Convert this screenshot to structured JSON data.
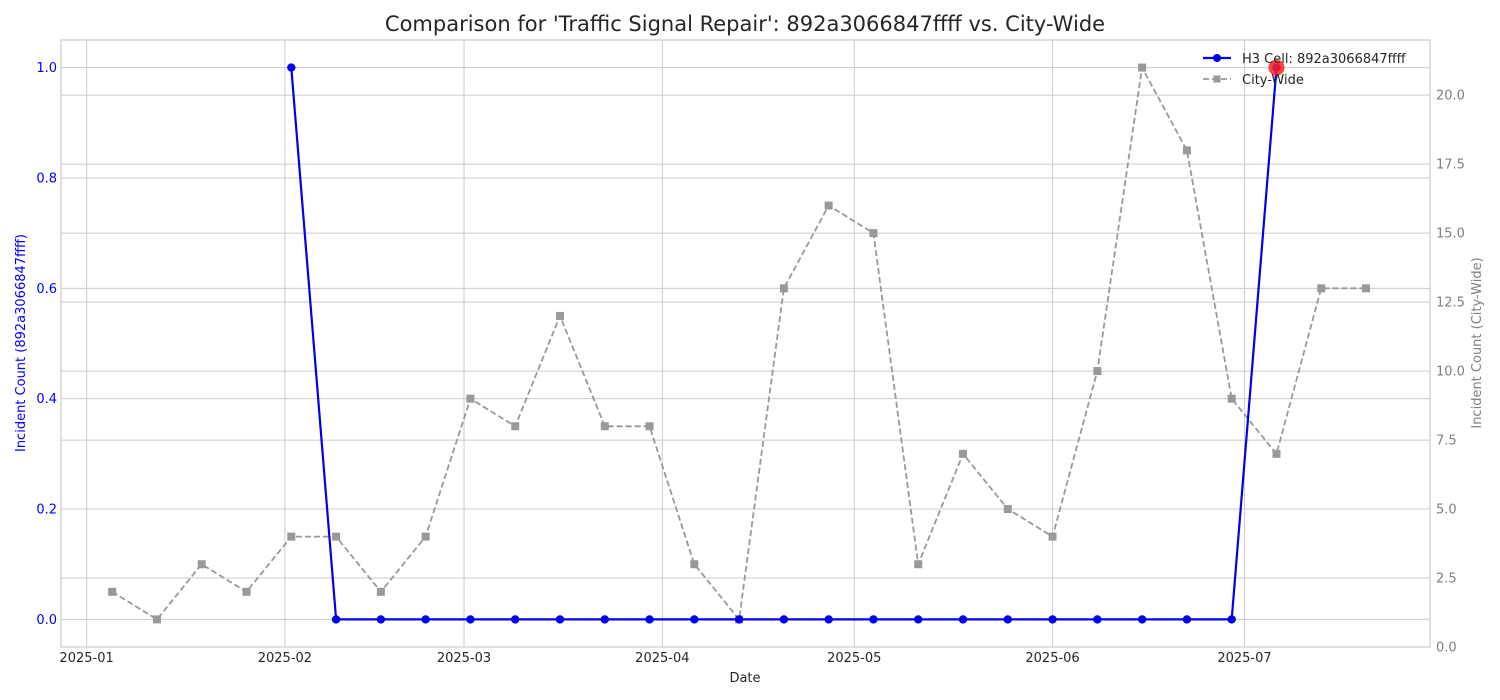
{
  "chart_data": {
    "type": "line",
    "title": "Comparison for 'Traffic Signal Repair': 892a3066847ffff vs. City-Wide",
    "xlabel": "Date",
    "ylabel_left": "Incident Count (892a3066847ffff)",
    "ylabel_right": "Incident Count (City-Wide)",
    "x_range": [
      "2024-12-28",
      "2025-07-30"
    ],
    "x_ticks": [
      {
        "date": "2025-01-01",
        "label": "2025-01"
      },
      {
        "date": "2025-02-01",
        "label": "2025-02"
      },
      {
        "date": "2025-03-01",
        "label": "2025-03"
      },
      {
        "date": "2025-04-01",
        "label": "2025-04"
      },
      {
        "date": "2025-05-01",
        "label": "2025-05"
      },
      {
        "date": "2025-06-01",
        "label": "2025-06"
      },
      {
        "date": "2025-07-01",
        "label": "2025-07"
      }
    ],
    "y_left": {
      "range": [
        -0.05,
        1.05
      ],
      "ticks": [
        0.0,
        0.2,
        0.4,
        0.6,
        0.8,
        1.0
      ],
      "tick_labels": [
        "0.0",
        "0.2",
        "0.4",
        "0.6",
        "0.8",
        "1.0"
      ],
      "color": "#0000ff"
    },
    "y_right": {
      "range": [
        0,
        22
      ],
      "ticks": [
        0,
        2.5,
        5,
        7.5,
        10,
        12.5,
        15,
        17.5,
        20
      ],
      "tick_labels": [
        "0.0",
        "2.5",
        "5.0",
        "7.5",
        "10.0",
        "12.5",
        "15.0",
        "17.5",
        "20.0"
      ],
      "color": "#808080"
    },
    "grid": true,
    "legend_position": "top-right",
    "series": [
      {
        "name": "H3 Cell: 892a3066847ffff",
        "axis": "left",
        "color": "#0000ee",
        "style": "solid",
        "marker": "circle",
        "x": [
          "2025-02-02",
          "2025-02-09",
          "2025-02-16",
          "2025-02-23",
          "2025-03-02",
          "2025-03-09",
          "2025-03-16",
          "2025-03-23",
          "2025-03-30",
          "2025-04-06",
          "2025-04-13",
          "2025-04-20",
          "2025-04-27",
          "2025-05-04",
          "2025-05-11",
          "2025-05-18",
          "2025-05-25",
          "2025-06-01",
          "2025-06-08",
          "2025-06-15",
          "2025-06-22",
          "2025-06-29",
          "2025-07-06"
        ],
        "values": [
          1,
          0,
          0,
          0,
          0,
          0,
          0,
          0,
          0,
          0,
          0,
          0,
          0,
          0,
          0,
          0,
          0,
          0,
          0,
          0,
          0,
          0,
          1
        ]
      },
      {
        "name": "City-Wide",
        "axis": "right",
        "color": "#999999",
        "style": "dashed",
        "marker": "square",
        "x": [
          "2025-01-05",
          "2025-01-12",
          "2025-01-19",
          "2025-01-26",
          "2025-02-02",
          "2025-02-09",
          "2025-02-16",
          "2025-02-23",
          "2025-03-02",
          "2025-03-09",
          "2025-03-16",
          "2025-03-23",
          "2025-03-30",
          "2025-04-06",
          "2025-04-13",
          "2025-04-20",
          "2025-04-27",
          "2025-05-04",
          "2025-05-11",
          "2025-05-18",
          "2025-05-25",
          "2025-06-01",
          "2025-06-08",
          "2025-06-15",
          "2025-06-22",
          "2025-06-29",
          "2025-07-06",
          "2025-07-13",
          "2025-07-20"
        ],
        "values": [
          2,
          1,
          3,
          2,
          4,
          4,
          2,
          4,
          9,
          8,
          12,
          8,
          8,
          3,
          1,
          13,
          16,
          15,
          3,
          7,
          5,
          4,
          10,
          21,
          18,
          9,
          7,
          13,
          13
        ]
      }
    ],
    "highlight": {
      "series": 0,
      "x": "2025-07-06",
      "value": 1,
      "color": "#ff2020"
    }
  }
}
